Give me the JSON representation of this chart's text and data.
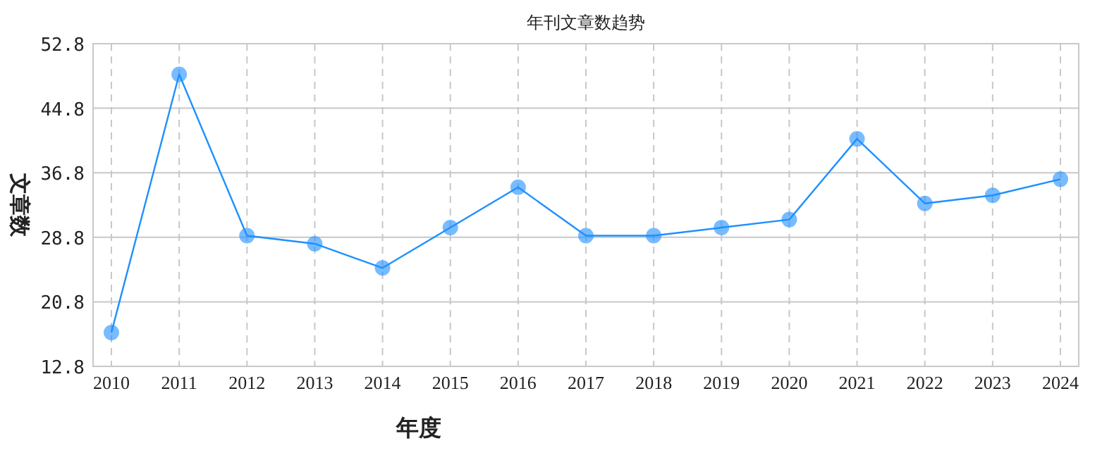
{
  "chart_data": {
    "type": "line",
    "title": "年刊文章数趋势",
    "xlabel": "年度",
    "ylabel": "文章数",
    "categories": [
      "2010",
      "2011",
      "2012",
      "2013",
      "2014",
      "2015",
      "2016",
      "2017",
      "2018",
      "2019",
      "2020",
      "2021",
      "2022",
      "2023",
      "2024"
    ],
    "series": [
      {
        "color": "#1e90ff",
        "values": [
          17,
          49,
          29,
          28,
          25,
          30,
          35,
          29,
          29,
          30,
          31,
          41,
          33,
          34,
          36
        ]
      }
    ],
    "ylim": [
      12.8,
      52.8
    ],
    "yticks": [
      12.8,
      20.8,
      28.8,
      36.8,
      44.8,
      52.8
    ],
    "grid": true,
    "marker": "circle",
    "line_style": "solid"
  }
}
